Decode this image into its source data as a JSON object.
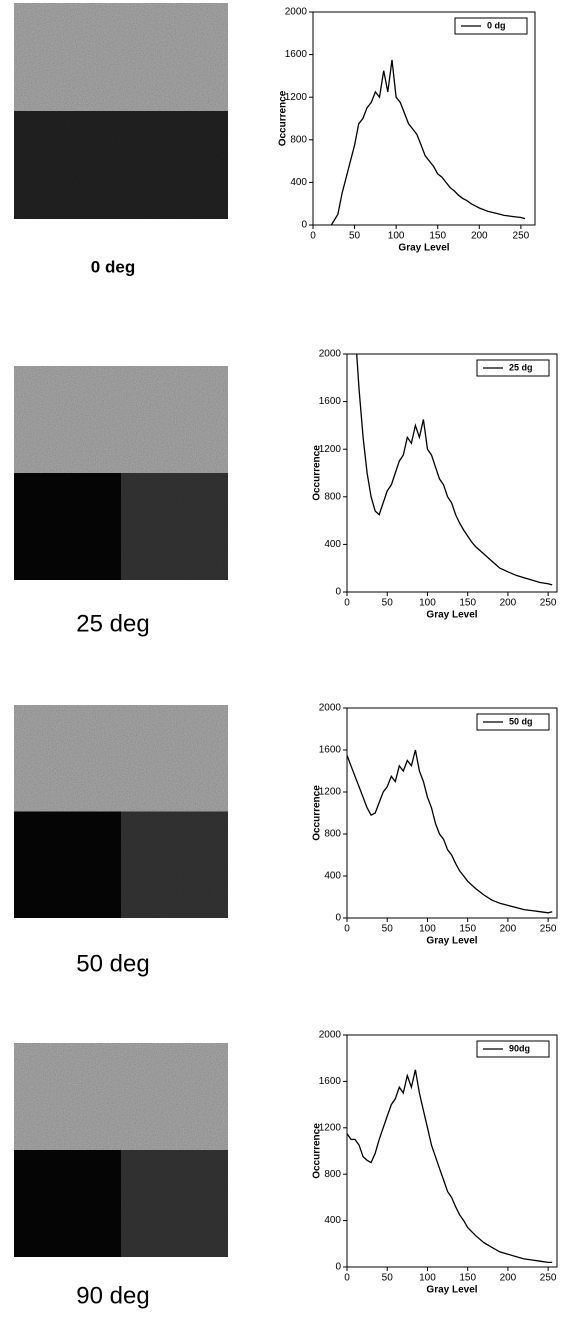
{
  "chart_data": [
    {
      "type": "line",
      "caption": "0 deg",
      "xlabel": "Gray Level",
      "ylabel": "Occurrence",
      "xlim": [
        0,
        267
      ],
      "ylim": [
        0,
        2000
      ],
      "xticks": [
        0,
        50,
        100,
        150,
        200,
        250
      ],
      "yticks": [
        0,
        400,
        800,
        1200,
        1600,
        2000
      ],
      "x": [
        22,
        30,
        35,
        40,
        45,
        50,
        55,
        60,
        65,
        70,
        75,
        80,
        85,
        90,
        95,
        100,
        105,
        110,
        115,
        120,
        125,
        130,
        135,
        140,
        145,
        150,
        155,
        160,
        165,
        170,
        175,
        180,
        185,
        190,
        195,
        200,
        210,
        220,
        230,
        240,
        250,
        255
      ],
      "series": [
        {
          "name": "0 dg",
          "color": "#000000",
          "values": [
            0,
            100,
            300,
            450,
            600,
            750,
            950,
            1000,
            1100,
            1150,
            1250,
            1200,
            1450,
            1250,
            1550,
            1200,
            1150,
            1050,
            950,
            900,
            850,
            750,
            650,
            600,
            550,
            480,
            450,
            400,
            350,
            320,
            280,
            250,
            230,
            200,
            180,
            160,
            130,
            110,
            90,
            80,
            70,
            60
          ]
        }
      ]
    },
    {
      "type": "line",
      "caption": "25 deg",
      "xlabel": "Gray Level",
      "ylabel": "Occurrence",
      "xlim": [
        0,
        261
      ],
      "ylim": [
        0,
        2000
      ],
      "xticks": [
        0,
        50,
        100,
        150,
        200,
        250
      ],
      "yticks": [
        0,
        400,
        800,
        1200,
        1600,
        2000
      ],
      "x": [
        12,
        15,
        20,
        25,
        30,
        35,
        40,
        45,
        50,
        55,
        60,
        65,
        70,
        75,
        80,
        85,
        90,
        95,
        100,
        105,
        110,
        115,
        120,
        125,
        130,
        135,
        140,
        145,
        150,
        155,
        160,
        170,
        180,
        190,
        200,
        210,
        220,
        230,
        240,
        250,
        255
      ],
      "series": [
        {
          "name": "25 dg",
          "color": "#000000",
          "values": [
            2000,
            1700,
            1300,
            1000,
            800,
            680,
            650,
            750,
            850,
            900,
            1000,
            1100,
            1150,
            1300,
            1250,
            1400,
            1300,
            1450,
            1200,
            1150,
            1050,
            950,
            900,
            800,
            750,
            650,
            580,
            520,
            470,
            420,
            380,
            320,
            260,
            200,
            170,
            140,
            120,
            100,
            80,
            70,
            60
          ]
        }
      ]
    },
    {
      "type": "line",
      "caption": "50 deg",
      "xlabel": "Gray Level",
      "ylabel": "Occurrence",
      "xlim": [
        0,
        261
      ],
      "ylim": [
        0,
        2000
      ],
      "xticks": [
        0,
        50,
        100,
        150,
        200,
        250
      ],
      "yticks": [
        0,
        400,
        800,
        1200,
        1600,
        2000
      ],
      "x": [
        0,
        5,
        10,
        15,
        20,
        25,
        30,
        35,
        40,
        45,
        50,
        55,
        60,
        65,
        70,
        75,
        80,
        85,
        90,
        95,
        100,
        105,
        110,
        115,
        120,
        125,
        130,
        135,
        140,
        145,
        150,
        160,
        170,
        180,
        190,
        200,
        210,
        220,
        230,
        240,
        250,
        255
      ],
      "series": [
        {
          "name": "50 dg",
          "color": "#000000",
          "values": [
            1550,
            1450,
            1350,
            1250,
            1150,
            1050,
            980,
            1000,
            1100,
            1200,
            1250,
            1350,
            1300,
            1450,
            1400,
            1500,
            1450,
            1600,
            1400,
            1300,
            1150,
            1050,
            900,
            800,
            750,
            650,
            600,
            520,
            450,
            400,
            350,
            280,
            220,
            170,
            140,
            120,
            100,
            80,
            70,
            60,
            50,
            60
          ]
        }
      ]
    },
    {
      "type": "line",
      "caption": "90 deg",
      "xlabel": "Gray Level",
      "ylabel": "Occurrence",
      "xlim": [
        0,
        261
      ],
      "ylim": [
        0,
        2000
      ],
      "xticks": [
        0,
        50,
        100,
        150,
        200,
        250
      ],
      "yticks": [
        0,
        400,
        800,
        1200,
        1600,
        2000
      ],
      "x": [
        0,
        5,
        10,
        15,
        20,
        25,
        30,
        35,
        40,
        45,
        50,
        55,
        60,
        65,
        70,
        75,
        80,
        85,
        90,
        95,
        100,
        105,
        110,
        115,
        120,
        125,
        130,
        135,
        140,
        145,
        150,
        160,
        170,
        180,
        190,
        200,
        210,
        220,
        230,
        240,
        250,
        255
      ],
      "series": [
        {
          "name": "90dg",
          "color": "#000000",
          "values": [
            1150,
            1100,
            1100,
            1050,
            950,
            920,
            900,
            980,
            1100,
            1200,
            1300,
            1400,
            1450,
            1550,
            1500,
            1650,
            1550,
            1700,
            1500,
            1350,
            1200,
            1050,
            950,
            850,
            750,
            650,
            600,
            520,
            450,
            400,
            340,
            270,
            210,
            170,
            130,
            110,
            90,
            70,
            60,
            50,
            40,
            40
          ]
        }
      ]
    }
  ]
}
